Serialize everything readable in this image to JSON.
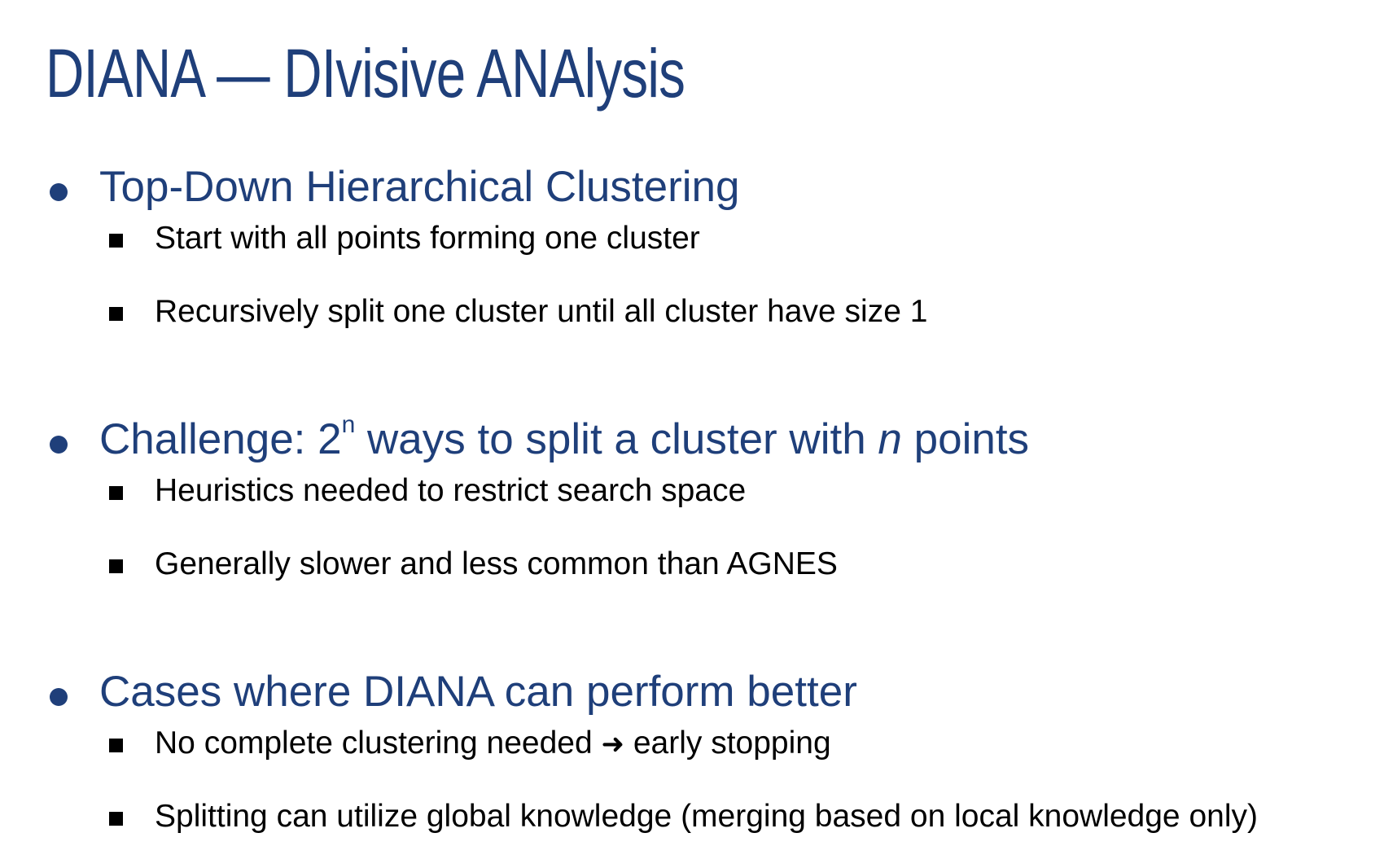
{
  "slide": {
    "title": "DIANA — DIvisive ANAlysis",
    "sections": [
      {
        "heading": "Top-Down Hierarchical Clustering",
        "items": [
          "Start with all points forming one cluster",
          "Recursively split one cluster until all cluster have size 1"
        ]
      },
      {
        "heading_prefix": "Challenge: 2",
        "heading_sup": "n",
        "heading_mid": " ways to split a cluster with ",
        "heading_italic": "n",
        "heading_suffix": " points",
        "items": [
          "Heuristics needed to restrict search space",
          "Generally slower and less common than AGNES"
        ]
      },
      {
        "heading": "Cases where DIANA can perform better",
        "items": [
          {
            "before_arrow": "No complete clustering needed ",
            "arrow": "➜",
            "after_arrow": " early stopping"
          },
          "Splitting can utilize global knowledge (merging based on local knowledge only)"
        ]
      }
    ]
  },
  "colors": {
    "heading": "#1f3f7a",
    "body_text": "#000000",
    "background": "#ffffff"
  },
  "icons": {
    "main_bullet": "filled-circle-bullet",
    "sub_bullet": "filled-square-bullet",
    "inline_arrow": "right-arrow"
  }
}
